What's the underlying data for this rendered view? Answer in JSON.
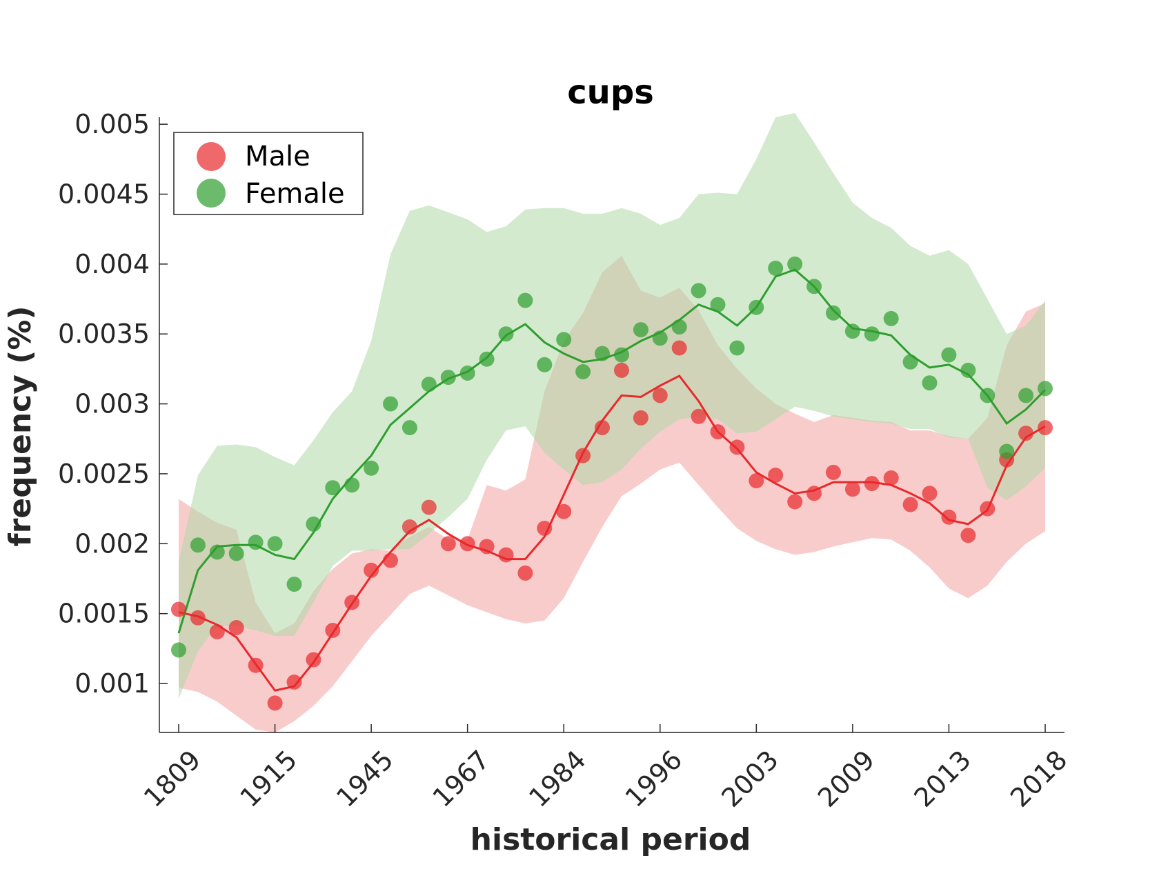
{
  "chart_data": {
    "type": "line",
    "title": "cups",
    "xlabel": "historical period",
    "ylabel": "frequency (%)",
    "ylim": [
      0.00065,
      0.00505
    ],
    "yticks": [
      0.001,
      0.0015,
      0.002,
      0.0025,
      0.003,
      0.0035,
      0.004,
      0.0045,
      0.005
    ],
    "ytick_labels": [
      "0.001",
      "0.0015",
      "0.002",
      "0.0025",
      "0.003",
      "0.0035",
      "0.004",
      "0.0045",
      "0.005"
    ],
    "xtick_labels": [
      "1809",
      "1915",
      "1945",
      "1967",
      "1984",
      "1996",
      "2003",
      "2009",
      "2013",
      "2018"
    ],
    "xtick_positions": [
      0,
      5,
      10,
      15,
      20,
      25,
      30,
      35,
      40,
      45
    ],
    "grid": false,
    "legend": {
      "position": "top-left"
    },
    "series": [
      {
        "name": "Male",
        "color": "#e8282b",
        "fill": "#f4a3a3",
        "points": [
          0.00153,
          0.00147,
          0.00137,
          0.0014,
          0.00113,
          0.00086,
          0.00101,
          0.00117,
          0.00138,
          0.00158,
          0.00181,
          0.00188,
          0.00212,
          0.00226,
          0.002,
          0.002,
          0.00198,
          0.00192,
          0.00179,
          0.00211,
          0.00223,
          0.00263,
          0.00283,
          0.00324,
          0.0029,
          0.00306,
          0.0034,
          0.00291,
          0.0028,
          0.00269,
          0.00245,
          0.00249,
          0.0023,
          0.00236,
          0.00251,
          0.00239,
          0.00243,
          0.00247,
          0.00228,
          0.00236,
          0.00219,
          0.00206,
          0.00225,
          0.0026,
          0.00279,
          0.00283
        ],
        "trend": [
          0.00151,
          0.00148,
          0.00142,
          0.00133,
          0.00114,
          0.00095,
          0.00098,
          0.00115,
          0.00136,
          0.00157,
          0.00177,
          0.00194,
          0.00209,
          0.00217,
          0.00207,
          0.00199,
          0.00195,
          0.00189,
          0.00189,
          0.00205,
          0.00235,
          0.00265,
          0.00288,
          0.00306,
          0.00305,
          0.00313,
          0.0032,
          0.00302,
          0.0028,
          0.00268,
          0.00251,
          0.00243,
          0.00236,
          0.00238,
          0.00244,
          0.00244,
          0.00244,
          0.00242,
          0.00236,
          0.00229,
          0.00217,
          0.00214,
          0.00224,
          0.00256,
          0.00276,
          0.00284
        ],
        "upper": [
          0.00232,
          0.00223,
          0.00215,
          0.0021,
          0.00158,
          0.00136,
          0.00143,
          0.00166,
          0.00182,
          0.00193,
          0.00196,
          0.00195,
          0.00205,
          0.00212,
          0.00203,
          0.00203,
          0.00242,
          0.00238,
          0.00246,
          0.00309,
          0.00345,
          0.00365,
          0.00394,
          0.00406,
          0.00381,
          0.00376,
          0.00383,
          0.00367,
          0.00342,
          0.00325,
          0.00311,
          0.003,
          0.00293,
          0.00287,
          0.00292,
          0.0029,
          0.00288,
          0.00287,
          0.00281,
          0.00281,
          0.00277,
          0.00275,
          0.0029,
          0.00342,
          0.00366,
          0.00372
        ],
        "lower": [
          0.00097,
          0.00094,
          0.00087,
          0.00077,
          0.00067,
          0.00065,
          0.00073,
          0.00084,
          0.00098,
          0.00116,
          0.00134,
          0.00149,
          0.00164,
          0.0017,
          0.00163,
          0.00156,
          0.00151,
          0.00146,
          0.00143,
          0.00145,
          0.00161,
          0.00187,
          0.00212,
          0.00234,
          0.00243,
          0.00253,
          0.00258,
          0.00242,
          0.00226,
          0.00211,
          0.00202,
          0.00196,
          0.00192,
          0.00194,
          0.00198,
          0.00201,
          0.00204,
          0.00203,
          0.00195,
          0.00183,
          0.00168,
          0.00161,
          0.0017,
          0.00187,
          0.002,
          0.00209
        ]
      },
      {
        "name": "Female",
        "color": "#2e9e2e",
        "fill": "#aed8a8",
        "points": [
          0.00124,
          0.00199,
          0.00194,
          0.00193,
          0.00201,
          0.002,
          0.00171,
          0.00214,
          0.0024,
          0.00242,
          0.00254,
          0.003,
          0.00283,
          0.00314,
          0.00319,
          0.00322,
          0.00332,
          0.0035,
          0.00374,
          0.00328,
          0.00346,
          0.00323,
          0.00336,
          0.00335,
          0.00353,
          0.00347,
          0.00355,
          0.00381,
          0.00371,
          0.0034,
          0.00369,
          0.00397,
          0.004,
          0.00384,
          0.00365,
          0.00352,
          0.0035,
          0.00361,
          0.0033,
          0.00315,
          0.00335,
          0.00324,
          0.00306,
          0.00266,
          0.00306,
          0.00311
        ],
        "trend": [
          0.00136,
          0.00181,
          0.00198,
          0.00199,
          0.00199,
          0.00192,
          0.00189,
          0.00208,
          0.00232,
          0.00248,
          0.00263,
          0.00285,
          0.00297,
          0.00309,
          0.00318,
          0.00323,
          0.00333,
          0.00349,
          0.00357,
          0.00344,
          0.00336,
          0.0033,
          0.00332,
          0.00337,
          0.00345,
          0.00351,
          0.0036,
          0.00371,
          0.00366,
          0.00356,
          0.00369,
          0.00391,
          0.00396,
          0.00384,
          0.00367,
          0.00354,
          0.00352,
          0.00349,
          0.00335,
          0.00326,
          0.00328,
          0.00321,
          0.00306,
          0.00286,
          0.00296,
          0.0031
        ],
        "upper": [
          0.00187,
          0.00249,
          0.0027,
          0.00271,
          0.00269,
          0.00262,
          0.00256,
          0.00274,
          0.00294,
          0.00309,
          0.00345,
          0.00407,
          0.00438,
          0.00442,
          0.00437,
          0.00432,
          0.00423,
          0.00427,
          0.00439,
          0.0044,
          0.0044,
          0.00436,
          0.00436,
          0.0044,
          0.00436,
          0.00428,
          0.00433,
          0.0045,
          0.00451,
          0.0045,
          0.00475,
          0.00505,
          0.00508,
          0.00487,
          0.00465,
          0.00444,
          0.00433,
          0.00426,
          0.00413,
          0.00406,
          0.0041,
          0.004,
          0.00375,
          0.0035,
          0.00356,
          0.00374
        ],
        "lower": [
          0.00089,
          0.00123,
          0.00141,
          0.00141,
          0.00138,
          0.00134,
          0.00134,
          0.00158,
          0.00184,
          0.00195,
          0.00195,
          0.00196,
          0.00196,
          0.00207,
          0.00219,
          0.00232,
          0.0026,
          0.00281,
          0.00284,
          0.00265,
          0.00253,
          0.00242,
          0.00244,
          0.00253,
          0.00268,
          0.0028,
          0.00289,
          0.00291,
          0.00289,
          0.00279,
          0.0028,
          0.00289,
          0.00298,
          0.00295,
          0.00291,
          0.00289,
          0.00287,
          0.00286,
          0.00282,
          0.00282,
          0.00276,
          0.00275,
          0.0024,
          0.00231,
          0.00241,
          0.00254
        ]
      }
    ]
  }
}
